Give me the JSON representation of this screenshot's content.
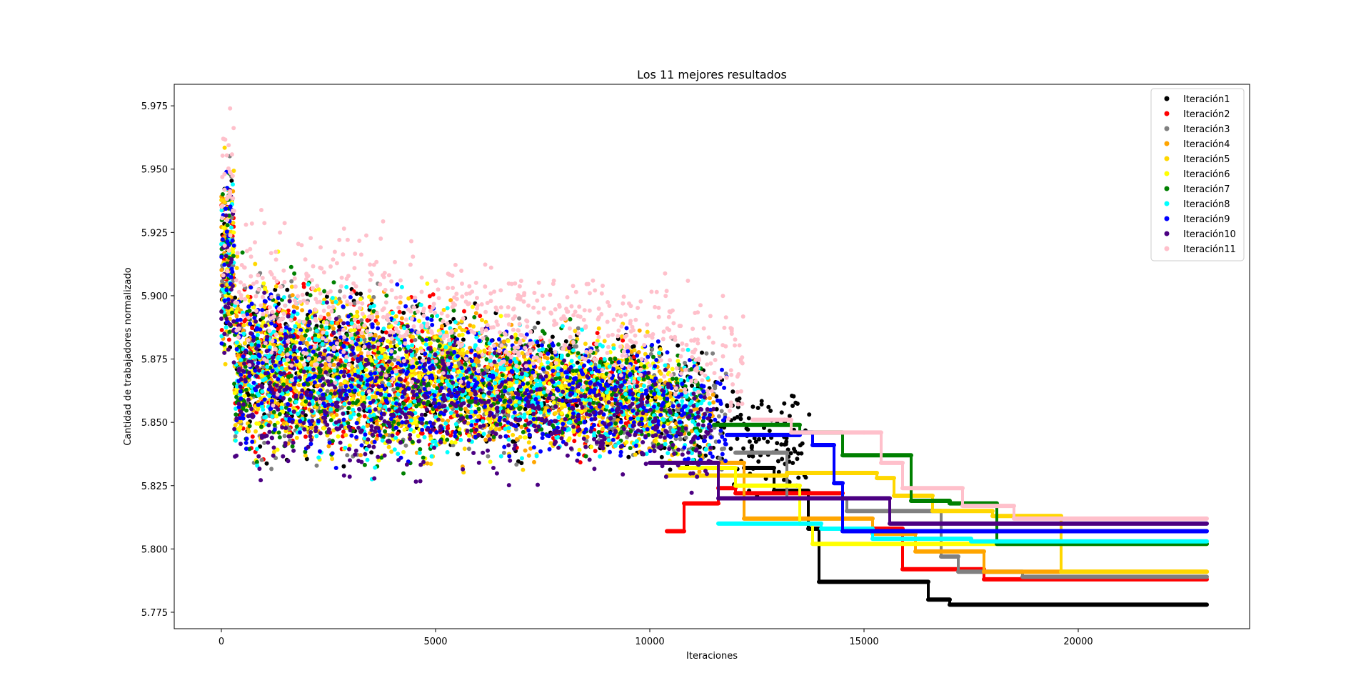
{
  "chart_data": {
    "type": "scatter",
    "title": "Los 11 mejores resultados",
    "xlabel": "Iteraciones",
    "ylabel": "Cantidad de trabajadores normalizado",
    "xlim": [
      -1100,
      24000
    ],
    "ylim": [
      5.7685,
      5.9835
    ],
    "xticks": [
      0,
      5000,
      10000,
      15000,
      20000
    ],
    "xtick_labels": [
      "0",
      "5000",
      "10000",
      "15000",
      "20000"
    ],
    "yticks": [
      5.775,
      5.8,
      5.825,
      5.85,
      5.875,
      5.9,
      5.925,
      5.95,
      5.975
    ],
    "ytick_labels": [
      "5.775",
      "5.800",
      "5.825",
      "5.850",
      "5.875",
      "5.900",
      "5.925",
      "5.950",
      "5.975"
    ],
    "grid": false,
    "legend_position": "top-right",
    "series": [
      {
        "name": "Iteración1",
        "color": "#000000",
        "noisy_end": 13800,
        "final_value": 5.778,
        "steps": [
          [
            12200,
            5.832
          ],
          [
            12900,
            5.823
          ],
          [
            13700,
            5.808
          ],
          [
            13950,
            5.787
          ],
          [
            16500,
            5.78
          ],
          [
            17000,
            5.778
          ]
        ]
      },
      {
        "name": "Iteración2",
        "color": "#ff0000",
        "noisy_end": 10000,
        "final_value": 5.788,
        "steps": [
          [
            10400,
            5.807
          ],
          [
            10800,
            5.818
          ],
          [
            11600,
            5.824
          ],
          [
            12000,
            5.822
          ],
          [
            14500,
            5.808
          ],
          [
            15900,
            5.792
          ],
          [
            17800,
            5.788
          ]
        ]
      },
      {
        "name": "Iteración3",
        "color": "#808080",
        "noisy_end": 11800,
        "final_value": 5.789,
        "steps": [
          [
            12000,
            5.838
          ],
          [
            13200,
            5.82
          ],
          [
            14600,
            5.815
          ],
          [
            16800,
            5.797
          ],
          [
            17200,
            5.791
          ],
          [
            18700,
            5.789
          ]
        ]
      },
      {
        "name": "Iteración4",
        "color": "#ffa500",
        "noisy_end": 11500,
        "final_value": 5.791,
        "steps": [
          [
            11600,
            5.834
          ],
          [
            12200,
            5.812
          ],
          [
            15200,
            5.806
          ],
          [
            16200,
            5.799
          ],
          [
            17800,
            5.791
          ]
        ]
      },
      {
        "name": "Iteración5",
        "color": "#ffd700",
        "noisy_end": 10400,
        "final_value": 5.791,
        "steps": [
          [
            10400,
            5.829
          ],
          [
            13200,
            5.83
          ],
          [
            15300,
            5.828
          ],
          [
            15700,
            5.821
          ],
          [
            16600,
            5.815
          ],
          [
            18000,
            5.813
          ],
          [
            19600,
            5.791
          ]
        ]
      },
      {
        "name": "Iteración6",
        "color": "#ffff00",
        "noisy_end": 10700,
        "final_value": 5.802,
        "steps": [
          [
            10700,
            5.832
          ],
          [
            12000,
            5.825
          ],
          [
            13500,
            5.81
          ],
          [
            13800,
            5.802
          ]
        ]
      },
      {
        "name": "Iteración7",
        "color": "#008000",
        "noisy_end": 11300,
        "final_value": 5.802,
        "steps": [
          [
            11500,
            5.849
          ],
          [
            13500,
            5.846
          ],
          [
            14500,
            5.837
          ],
          [
            16100,
            5.819
          ],
          [
            17000,
            5.818
          ],
          [
            18100,
            5.802
          ]
        ]
      },
      {
        "name": "Iteración8",
        "color": "#00ffff",
        "noisy_end": 11400,
        "final_value": 5.803,
        "steps": [
          [
            11600,
            5.81
          ],
          [
            14000,
            5.808
          ],
          [
            15200,
            5.804
          ],
          [
            17500,
            5.803
          ]
        ]
      },
      {
        "name": "Iteración9",
        "color": "#0000ff",
        "noisy_end": 11800,
        "final_value": 5.807,
        "steps": [
          [
            11800,
            5.845
          ],
          [
            13500,
            5.846
          ],
          [
            13800,
            5.841
          ],
          [
            14300,
            5.826
          ],
          [
            14500,
            5.807
          ]
        ]
      },
      {
        "name": "Iteración10",
        "color": "#4b0082",
        "noisy_end": 11500,
        "final_value": 5.81,
        "steps": [
          [
            10000,
            5.834
          ],
          [
            11200,
            5.834
          ],
          [
            11600,
            5.82
          ],
          [
            15000,
            5.82
          ],
          [
            15600,
            5.81
          ]
        ]
      },
      {
        "name": "Iteración11",
        "color": "#ffc0cb",
        "noisy_end": 12200,
        "final_value": 5.812,
        "steps": [
          [
            12400,
            5.851
          ],
          [
            13300,
            5.846
          ],
          [
            15000,
            5.846
          ],
          [
            15400,
            5.834
          ],
          [
            15900,
            5.824
          ],
          [
            17300,
            5.817
          ],
          [
            18500,
            5.812
          ]
        ]
      }
    ],
    "x_end": 23000
  }
}
